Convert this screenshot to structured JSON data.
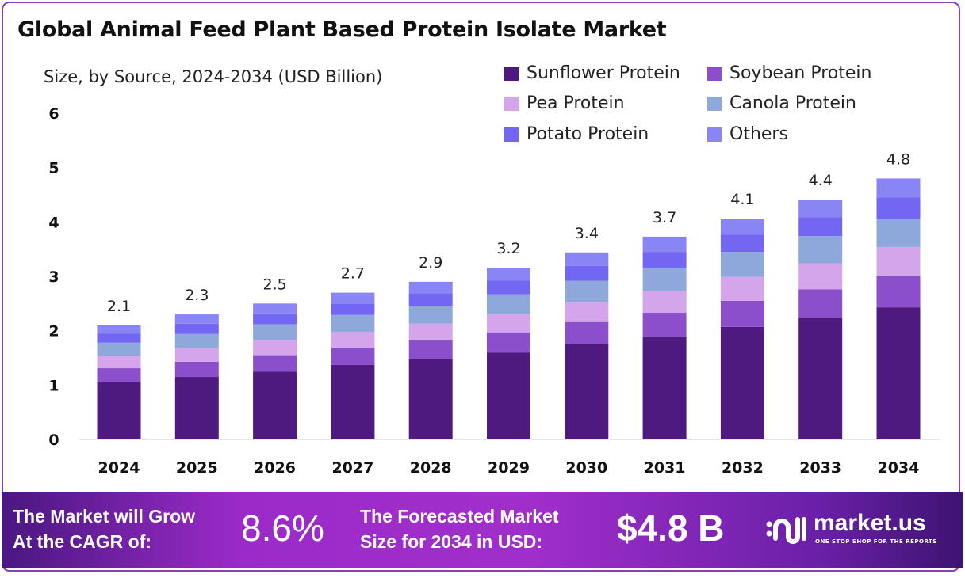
{
  "title": "Global Animal Feed Plant Based Protein Isolate Market",
  "subtitle": "Size, by Source, 2024-2034 (USD Billion)",
  "chart_data": {
    "type": "bar",
    "stacked": true,
    "categories": [
      "2024",
      "2025",
      "2026",
      "2027",
      "2028",
      "2029",
      "2030",
      "2031",
      "2032",
      "2033",
      "2034"
    ],
    "series": [
      {
        "name": "Sunflower Protein",
        "color": "#4e1a7f",
        "values": [
          1.06,
          1.15,
          1.25,
          1.37,
          1.48,
          1.6,
          1.75,
          1.89,
          2.07,
          2.24,
          2.43
        ]
      },
      {
        "name": "Soybean Protein",
        "color": "#8b4fcc",
        "values": [
          0.25,
          0.28,
          0.3,
          0.32,
          0.34,
          0.37,
          0.41,
          0.44,
          0.48,
          0.52,
          0.58
        ]
      },
      {
        "name": "Pea Protein",
        "color": "#d4a5ea",
        "values": [
          0.23,
          0.25,
          0.28,
          0.29,
          0.31,
          0.34,
          0.37,
          0.4,
          0.44,
          0.48,
          0.53
        ]
      },
      {
        "name": "Canola Protein",
        "color": "#8fa8dc",
        "values": [
          0.24,
          0.26,
          0.29,
          0.31,
          0.33,
          0.36,
          0.39,
          0.42,
          0.46,
          0.5,
          0.52
        ]
      },
      {
        "name": "Potato Protein",
        "color": "#7366f2",
        "values": [
          0.17,
          0.19,
          0.2,
          0.21,
          0.23,
          0.25,
          0.27,
          0.3,
          0.32,
          0.35,
          0.39
        ]
      },
      {
        "name": "Others",
        "color": "#8a85f5",
        "values": [
          0.15,
          0.17,
          0.18,
          0.2,
          0.21,
          0.24,
          0.25,
          0.28,
          0.29,
          0.32,
          0.35
        ]
      }
    ],
    "totals": [
      "2.1",
      "2.3",
      "2.5",
      "2.7",
      "2.9",
      "3.2",
      "3.4",
      "3.7",
      "4.1",
      "4.4",
      "4.8"
    ],
    "yticks": [
      "0",
      "1",
      "2",
      "3",
      "4",
      "5",
      "6"
    ],
    "ylim": [
      0,
      6
    ],
    "grid": false,
    "legend_position": "top-right"
  },
  "footer": {
    "cagr_label_1": "The Market will Grow",
    "cagr_label_2": "At the CAGR of:",
    "cagr_value": "8.6%",
    "forecast_label_1": "The Forecasted Market",
    "forecast_label_2": "Size for 2034 in USD:",
    "forecast_value": "$4.8 B",
    "brand": "market.us",
    "tagline": "ONE STOP SHOP FOR THE REPORTS"
  }
}
